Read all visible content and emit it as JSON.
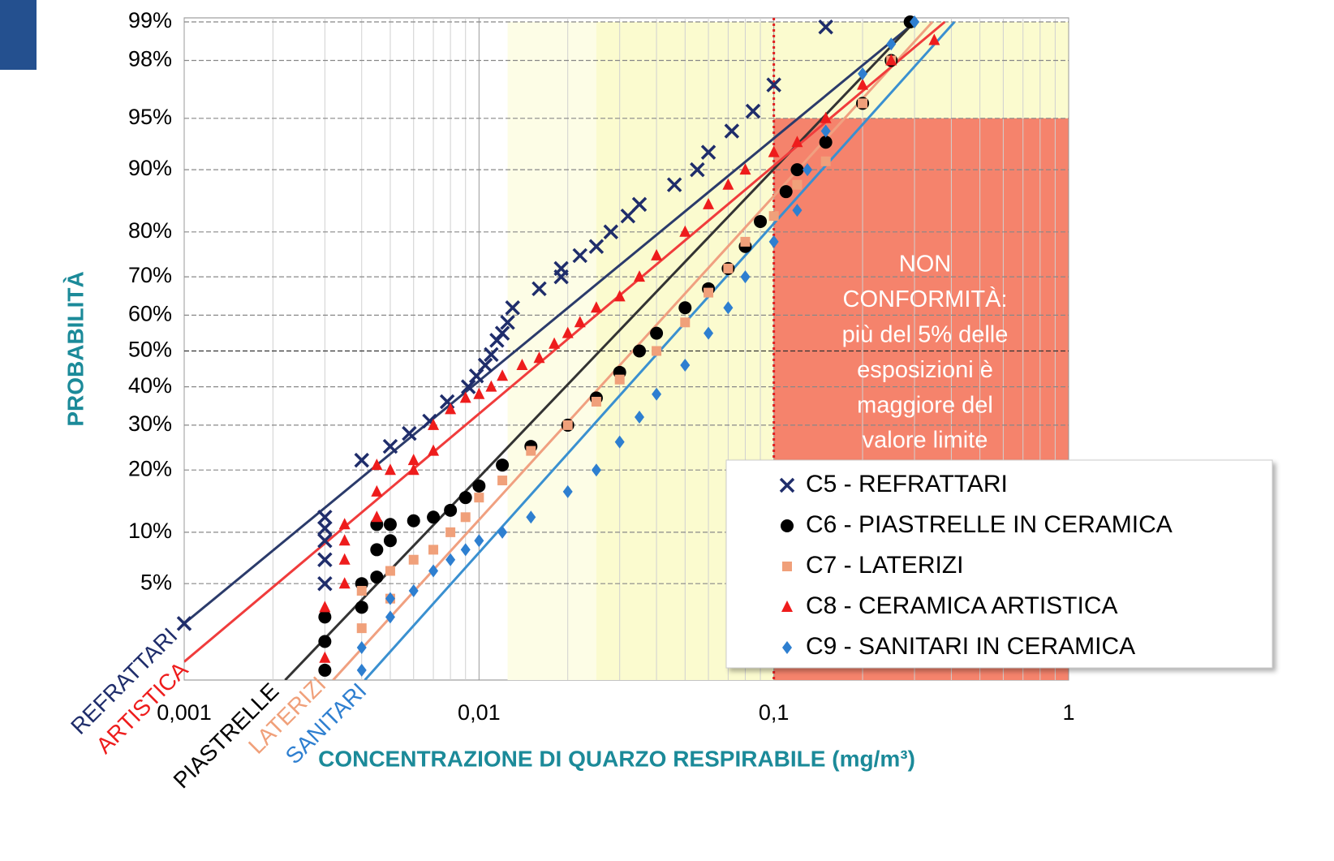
{
  "chart_data": {
    "type": "scatter",
    "xlabel": "CONCENTRAZIONE DI QUARZO RESPIRABILE (mg/m³)",
    "ylabel": "PROBABILITÀ",
    "xscale": "log",
    "yscale": "probability",
    "xlim": [
      0.001,
      1
    ],
    "ylim": [
      1,
      99
    ],
    "xticks": [
      {
        "value": 0.001,
        "label": "0,001"
      },
      {
        "value": 0.01,
        "label": "0,01"
      },
      {
        "value": 0.1,
        "label": "0,1"
      },
      1
    ],
    "yticks": [
      {
        "value": 99,
        "label": "99%"
      },
      {
        "value": 98,
        "label": "98%"
      },
      {
        "value": 95,
        "label": "95%"
      },
      {
        "value": 90,
        "label": "90%"
      },
      {
        "value": 80,
        "label": "80%"
      },
      {
        "value": 70,
        "label": "70%"
      },
      {
        "value": 60,
        "label": "60%"
      },
      {
        "value": 50,
        "label": "50%"
      },
      {
        "value": 40,
        "label": "40%"
      },
      {
        "value": 30,
        "label": "30%"
      },
      {
        "value": 20,
        "label": "20%"
      },
      {
        "value": 10,
        "label": "10%"
      },
      {
        "value": 5,
        "label": "5%"
      }
    ],
    "grid": true,
    "regions": [
      {
        "xlim": [
          0.0125,
          1
        ],
        "ylim": [
          1,
          99
        ],
        "color": "#fdfde6"
      },
      {
        "xlim": [
          0.025,
          1
        ],
        "ylim": [
          1,
          99
        ],
        "color": "#fbfbcf"
      },
      {
        "xlim": [
          0.1,
          1
        ],
        "ylim": [
          1,
          95
        ],
        "color": "#f5836c"
      }
    ],
    "limit_line": 0.1,
    "annotation": [
      "NON",
      "CONFORMITÀ:",
      "più del 5% delle",
      "esposizioni è",
      "maggiore del",
      "valore limite"
    ],
    "legend": "right",
    "series": [
      {
        "name": "C5 - REFRATTARI",
        "line_label": "REFRATTARI",
        "marker": "x",
        "color": "#1f2d6b",
        "line_color": "#2b3b6b",
        "x": [
          0.001,
          0.003,
          0.003,
          0.003,
          0.003,
          0.003,
          0.004,
          0.005,
          0.0058,
          0.0068,
          0.0078,
          0.0092,
          0.0098,
          0.0105,
          0.011,
          0.0115,
          0.012,
          0.0125,
          0.013,
          0.016,
          0.019,
          0.019,
          0.022,
          0.025,
          0.028,
          0.032,
          0.035,
          0.046,
          0.055,
          0.06,
          0.072,
          0.085,
          0.1,
          0.15
        ],
        "values": [
          2.7,
          5,
          7,
          9,
          10.5,
          12,
          22,
          25,
          28,
          31,
          36,
          40,
          43,
          46,
          49,
          53,
          55,
          58,
          62,
          67,
          70,
          72,
          75,
          77,
          80,
          83,
          85,
          88,
          90,
          92,
          94,
          95.5,
          97,
          98.9
        ],
        "fit_x": [
          0.001,
          0.302
        ],
        "fit_values": [
          2.7,
          99
        ]
      },
      {
        "name": "C6 - PIASTRELLE IN CERAMICA",
        "line_label": "PIASTRELLE",
        "marker": "circle",
        "color": "#000000",
        "line_color": "#333333",
        "x": [
          0.003,
          0.003,
          0.003,
          0.004,
          0.004,
          0.0045,
          0.0045,
          0.0045,
          0.005,
          0.005,
          0.006,
          0.007,
          0.008,
          0.009,
          0.01,
          0.012,
          0.015,
          0.02,
          0.025,
          0.03,
          0.035,
          0.04,
          0.05,
          0.06,
          0.07,
          0.08,
          0.09,
          0.11,
          0.12,
          0.15,
          0.2,
          0.25,
          0.29
        ],
        "values": [
          1.2,
          2,
          3,
          3.5,
          5,
          5.5,
          8,
          11,
          9,
          11,
          11.5,
          12,
          13,
          15,
          17,
          21,
          25,
          30,
          37,
          44,
          50,
          55,
          62,
          67,
          72,
          77,
          82,
          87,
          90,
          93,
          96,
          98,
          99
        ],
        "fit_x": [
          0.0022,
          0.3
        ],
        "fit_values": [
          1,
          99
        ]
      },
      {
        "name": "C7 - LATERIZI",
        "line_label": "LATERIZI",
        "marker": "square",
        "color": "#f0a07a",
        "line_color": "#f0a080",
        "x": [
          0.004,
          0.004,
          0.005,
          0.005,
          0.006,
          0.007,
          0.008,
          0.009,
          0.01,
          0.012,
          0.015,
          0.02,
          0.025,
          0.03,
          0.04,
          0.05,
          0.06,
          0.07,
          0.08,
          0.1,
          0.12,
          0.15,
          0.2,
          0.25
        ],
        "values": [
          2.5,
          4.5,
          4,
          6,
          7,
          8,
          10,
          12,
          15,
          18,
          24,
          30,
          36,
          42,
          50,
          58,
          66,
          72,
          78,
          83,
          88,
          91,
          96,
          98
        ],
        "fit_x": [
          0.0032,
          0.345
        ],
        "fit_values": [
          1,
          99
        ]
      },
      {
        "name": "C8 - CERAMICA ARTISTICA",
        "line_label": "ARTISTICA",
        "marker": "triangle",
        "color": "#ee1c1c",
        "line_color": "#f03c3c",
        "x": [
          0.003,
          0.003,
          0.0035,
          0.0035,
          0.0035,
          0.0035,
          0.0045,
          0.0045,
          0.0045,
          0.005,
          0.006,
          0.006,
          0.007,
          0.007,
          0.008,
          0.009,
          0.01,
          0.011,
          0.012,
          0.014,
          0.016,
          0.018,
          0.02,
          0.022,
          0.025,
          0.03,
          0.035,
          0.04,
          0.05,
          0.06,
          0.07,
          0.08,
          0.1,
          0.12,
          0.15,
          0.2,
          0.25,
          0.35
        ],
        "values": [
          1.5,
          3.5,
          5,
          7,
          9,
          11,
          12,
          16,
          21,
          20,
          20,
          22,
          24,
          30,
          34,
          37,
          38,
          40,
          43,
          46,
          48,
          52,
          55,
          58,
          62,
          65,
          70,
          75,
          80,
          85,
          88,
          90,
          92,
          93,
          95,
          97,
          98,
          98.6
        ],
        "fit_x": [
          0.001,
          0.38
        ],
        "fit_values": [
          1.4,
          99
        ]
      },
      {
        "name": "C9 - SANITARI IN CERAMICA",
        "line_label": "SANITARI",
        "marker": "diamond",
        "color": "#2e7fd0",
        "line_color": "#3a90d0",
        "x": [
          0.004,
          0.004,
          0.005,
          0.005,
          0.006,
          0.007,
          0.008,
          0.009,
          0.01,
          0.012,
          0.015,
          0.02,
          0.025,
          0.03,
          0.035,
          0.04,
          0.05,
          0.06,
          0.07,
          0.08,
          0.1,
          0.12,
          0.13,
          0.15,
          0.2,
          0.25,
          0.3
        ],
        "values": [
          1.2,
          1.8,
          3,
          4,
          4.5,
          6,
          7,
          8,
          9,
          10,
          12,
          16,
          20,
          26,
          32,
          38,
          46,
          55,
          62,
          70,
          78,
          84,
          90,
          94,
          97.5,
          98.5,
          99
        ],
        "fit_x": [
          0.0041,
          0.41
        ],
        "fit_values": [
          1,
          99
        ]
      }
    ]
  }
}
